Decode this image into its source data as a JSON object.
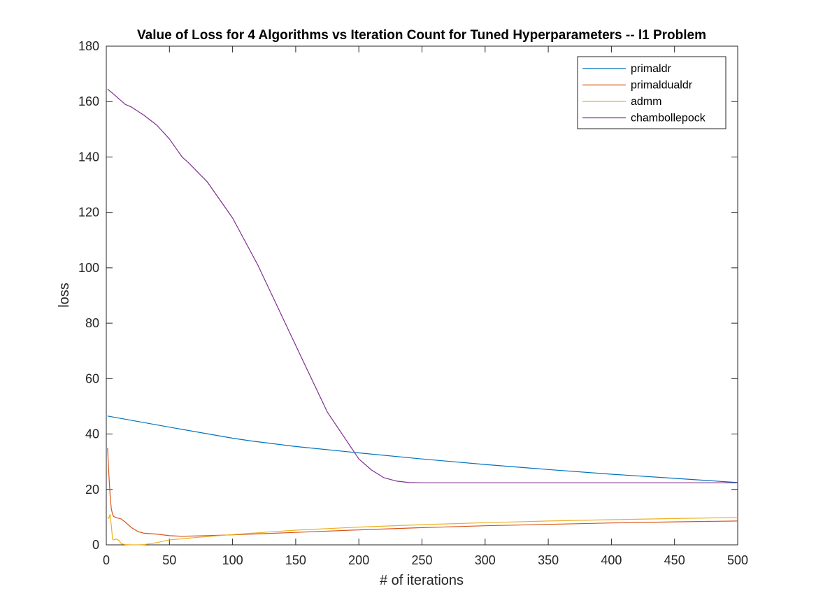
{
  "chart_data": {
    "type": "line",
    "title": "Value of Loss for 4 Algorithms vs Iteration Count for Tuned Hyperparameters -- l1 Problem",
    "xlabel": "# of iterations",
    "ylabel": "loss",
    "xlim": [
      0,
      500
    ],
    "ylim": [
      0,
      180
    ],
    "xticks": [
      0,
      50,
      100,
      150,
      200,
      250,
      300,
      350,
      400,
      450,
      500
    ],
    "yticks": [
      0,
      20,
      40,
      60,
      80,
      100,
      120,
      140,
      160,
      180
    ],
    "grid": false,
    "legend_position": "top-right",
    "series": [
      {
        "name": "primaldr",
        "color": "#0072BD",
        "x": [
          1,
          50,
          100,
          115,
          150,
          200,
          250,
          300,
          350,
          400,
          450,
          500
        ],
        "y": [
          46.5,
          42.5,
          38.5,
          37.5,
          35.5,
          33.2,
          31.0,
          29.0,
          27.2,
          25.5,
          24.0,
          22.5
        ]
      },
      {
        "name": "primaldualdr",
        "color": "#D95319",
        "x": [
          1,
          2,
          3,
          4,
          5,
          6,
          8,
          10,
          12,
          15,
          20,
          25,
          30,
          40,
          50,
          60,
          80,
          100,
          150,
          200,
          250,
          300,
          350,
          400,
          450,
          500
        ],
        "y": [
          35,
          26,
          18,
          13,
          11,
          10.2,
          9.8,
          9.6,
          9.3,
          8.2,
          6.2,
          4.8,
          4.2,
          3.9,
          3.3,
          3.1,
          3.3,
          3.6,
          4.5,
          5.4,
          6.2,
          6.9,
          7.4,
          7.9,
          8.3,
          8.6
        ]
      },
      {
        "name": "admm",
        "color": "#EDB120",
        "x": [
          1,
          2,
          3,
          4,
          5,
          6,
          8,
          10,
          12,
          15,
          20,
          25,
          30,
          40,
          50,
          70,
          100,
          150,
          200,
          250,
          300,
          350,
          400,
          450,
          500
        ],
        "y": [
          10,
          9.5,
          11,
          7,
          2,
          1.8,
          2.1,
          1.6,
          0.4,
          0.1,
          0.0,
          0.0,
          0.1,
          0.8,
          1.8,
          2.6,
          3.7,
          5.3,
          6.4,
          7.3,
          8.0,
          8.6,
          9.1,
          9.5,
          9.9
        ]
      },
      {
        "name": "chambollepock",
        "color": "#7E2F8E",
        "x": [
          1,
          5,
          10,
          15,
          20,
          30,
          40,
          50,
          60,
          65,
          80,
          100,
          120,
          150,
          175,
          200,
          210,
          220,
          230,
          240,
          250,
          275,
          300,
          400,
          500
        ],
        "y": [
          164.5,
          163,
          161,
          159,
          158,
          155,
          151.5,
          146.5,
          140,
          138,
          131,
          118,
          101,
          72,
          48,
          31,
          27,
          24.2,
          23,
          22.5,
          22.4,
          22.4,
          22.4,
          22.4,
          22.4
        ]
      }
    ]
  }
}
